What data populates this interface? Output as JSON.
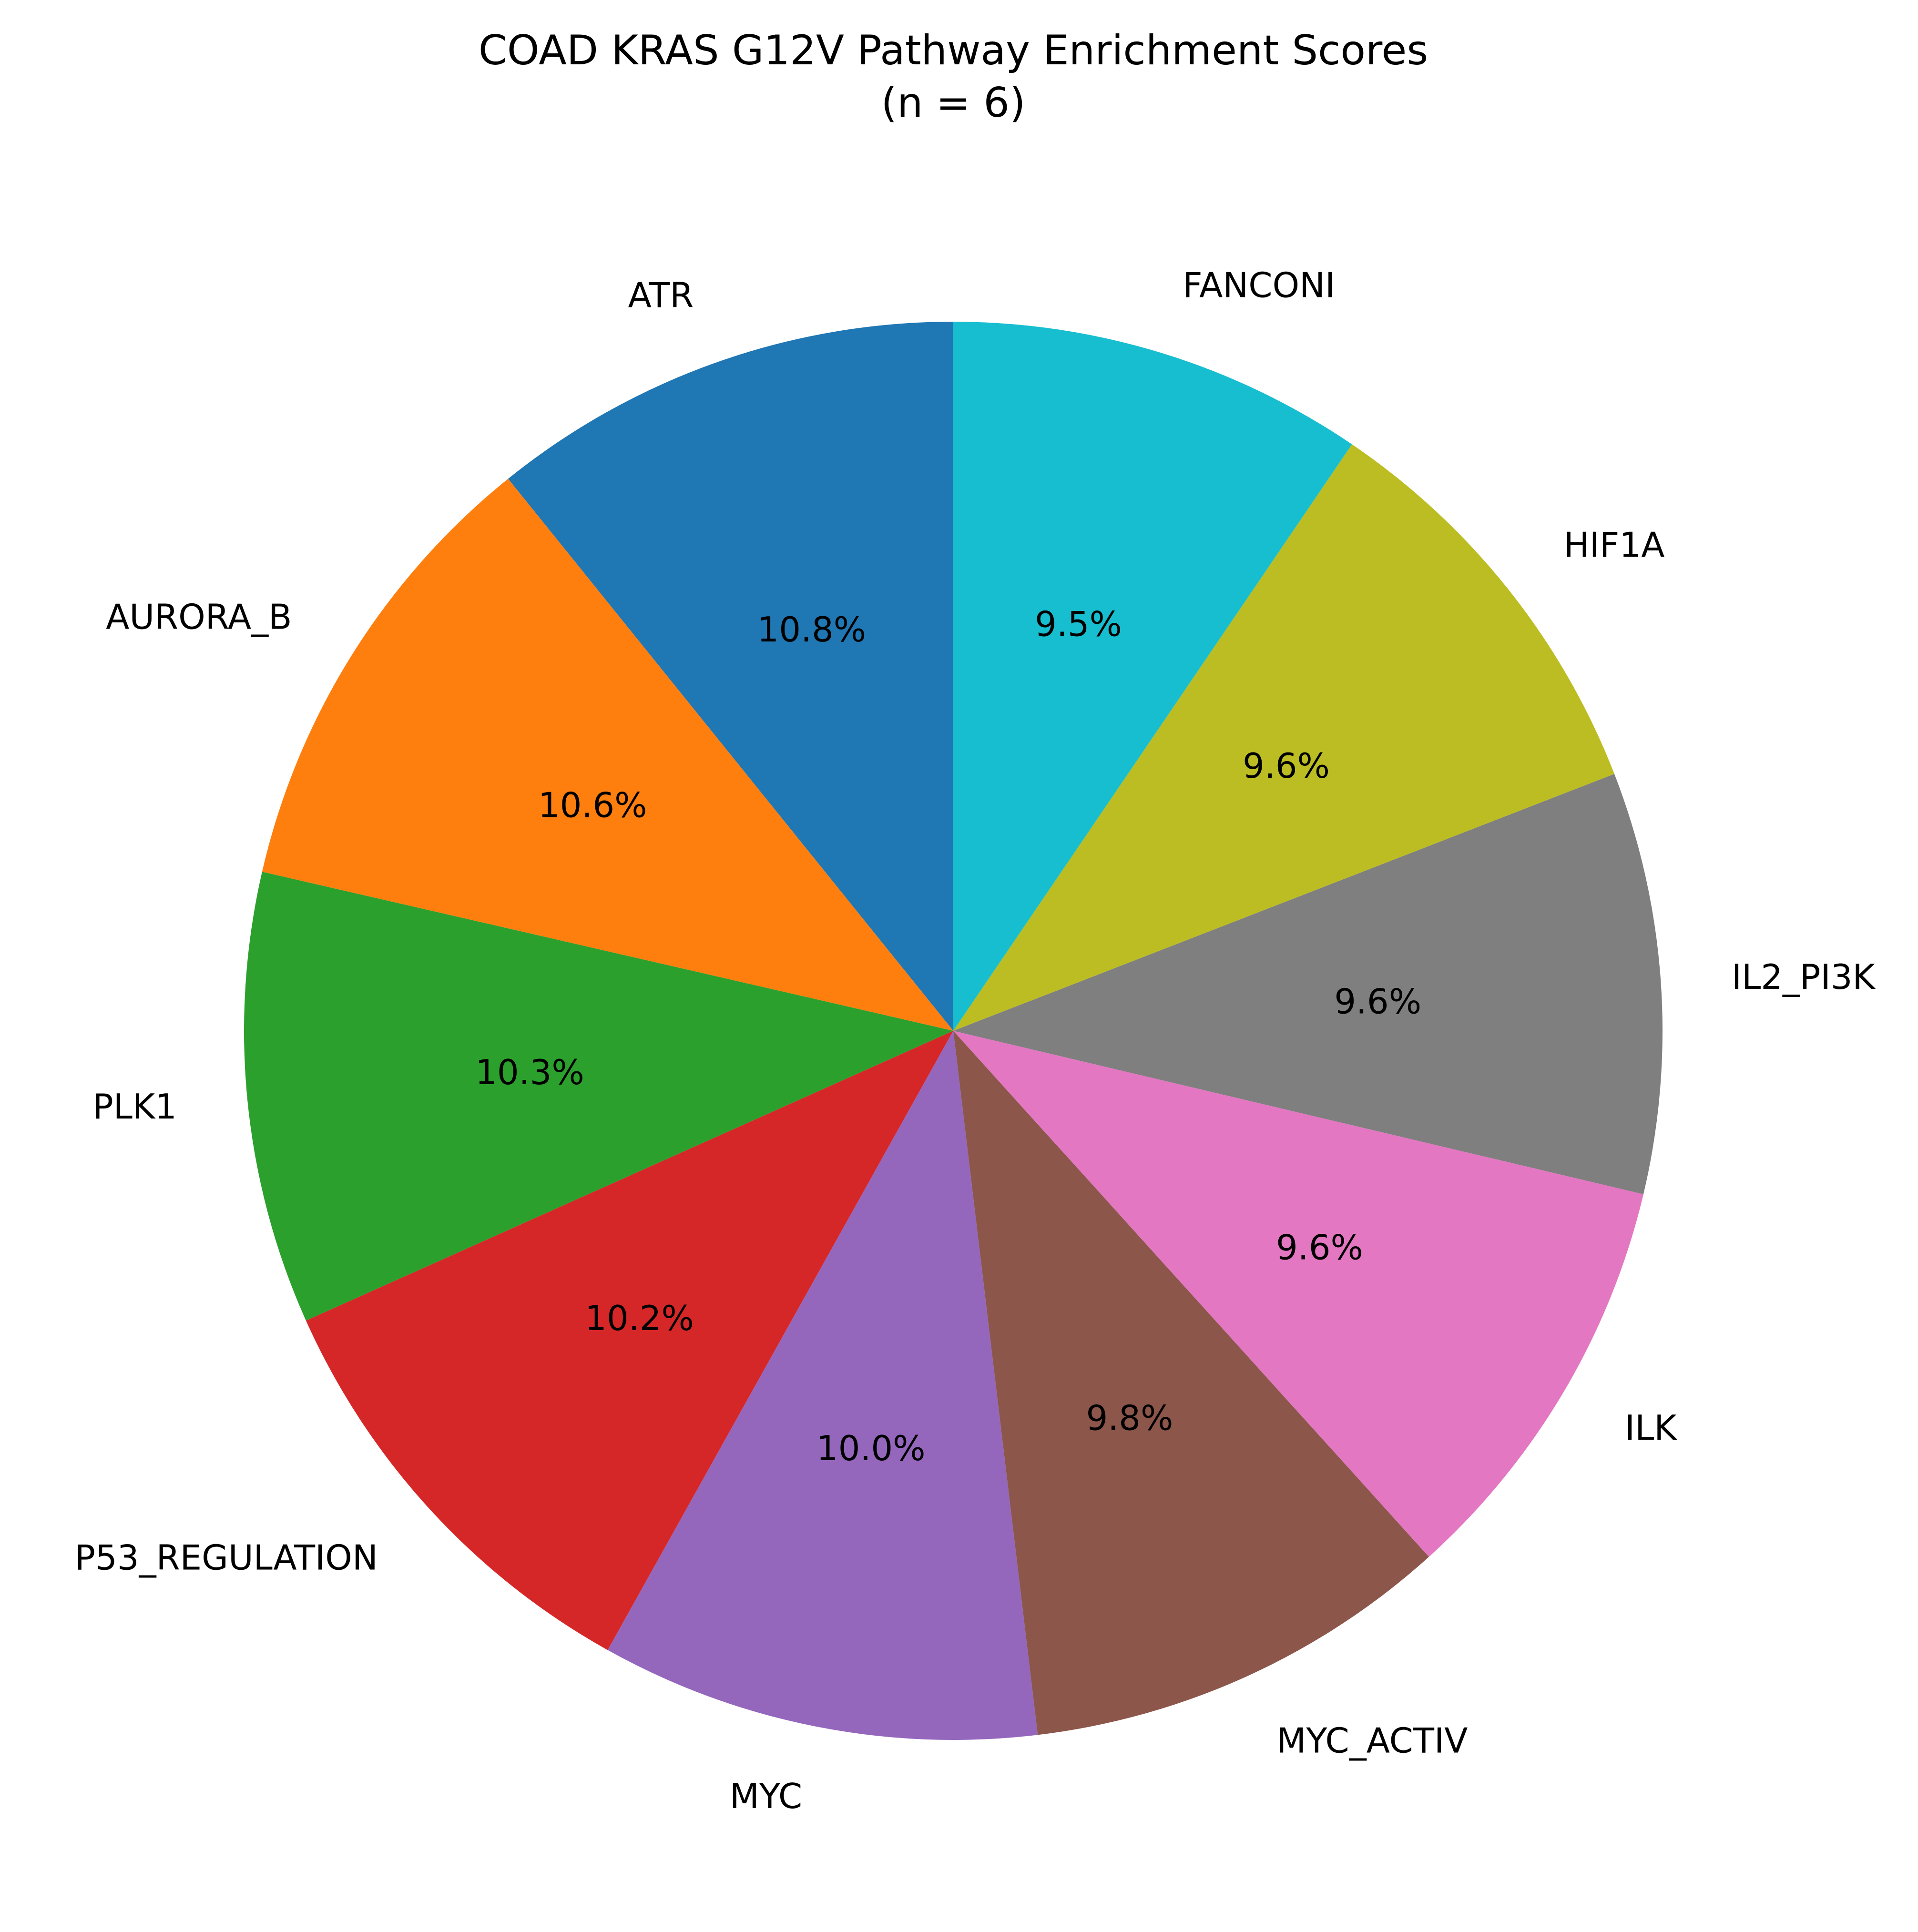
{
  "chart_data": {
    "type": "pie",
    "title": "COAD KRAS G12V Pathway Enrichment Scores",
    "subtitle": "(n = 6)",
    "start_angle_deg": 90,
    "direction": "counterclockwise",
    "slices": [
      {
        "label": "ATR",
        "percent": 10.8,
        "percent_label": "10.8%",
        "color": "#1f77b4"
      },
      {
        "label": "AURORA_B",
        "percent": 10.6,
        "percent_label": "10.6%",
        "color": "#ff7f0e"
      },
      {
        "label": "PLK1",
        "percent": 10.3,
        "percent_label": "10.3%",
        "color": "#2ca02c"
      },
      {
        "label": "P53_REGULATION",
        "percent": 10.2,
        "percent_label": "10.2%",
        "color": "#d62728"
      },
      {
        "label": "MYC",
        "percent": 10.0,
        "percent_label": "10.0%",
        "color": "#9467bd"
      },
      {
        "label": "MYC_ACTIV",
        "percent": 9.8,
        "percent_label": "9.8%",
        "color": "#8c564b"
      },
      {
        "label": "ILK",
        "percent": 9.6,
        "percent_label": "9.6%",
        "color": "#e377c2"
      },
      {
        "label": "IL2_PI3K",
        "percent": 9.6,
        "percent_label": "9.6%",
        "color": "#7f7f7f"
      },
      {
        "label": "HIF1A",
        "percent": 9.6,
        "percent_label": "9.6%",
        "color": "#bcbd22"
      },
      {
        "label": "FANCONI",
        "percent": 9.5,
        "percent_label": "9.5%",
        "color": "#17becf"
      }
    ]
  }
}
